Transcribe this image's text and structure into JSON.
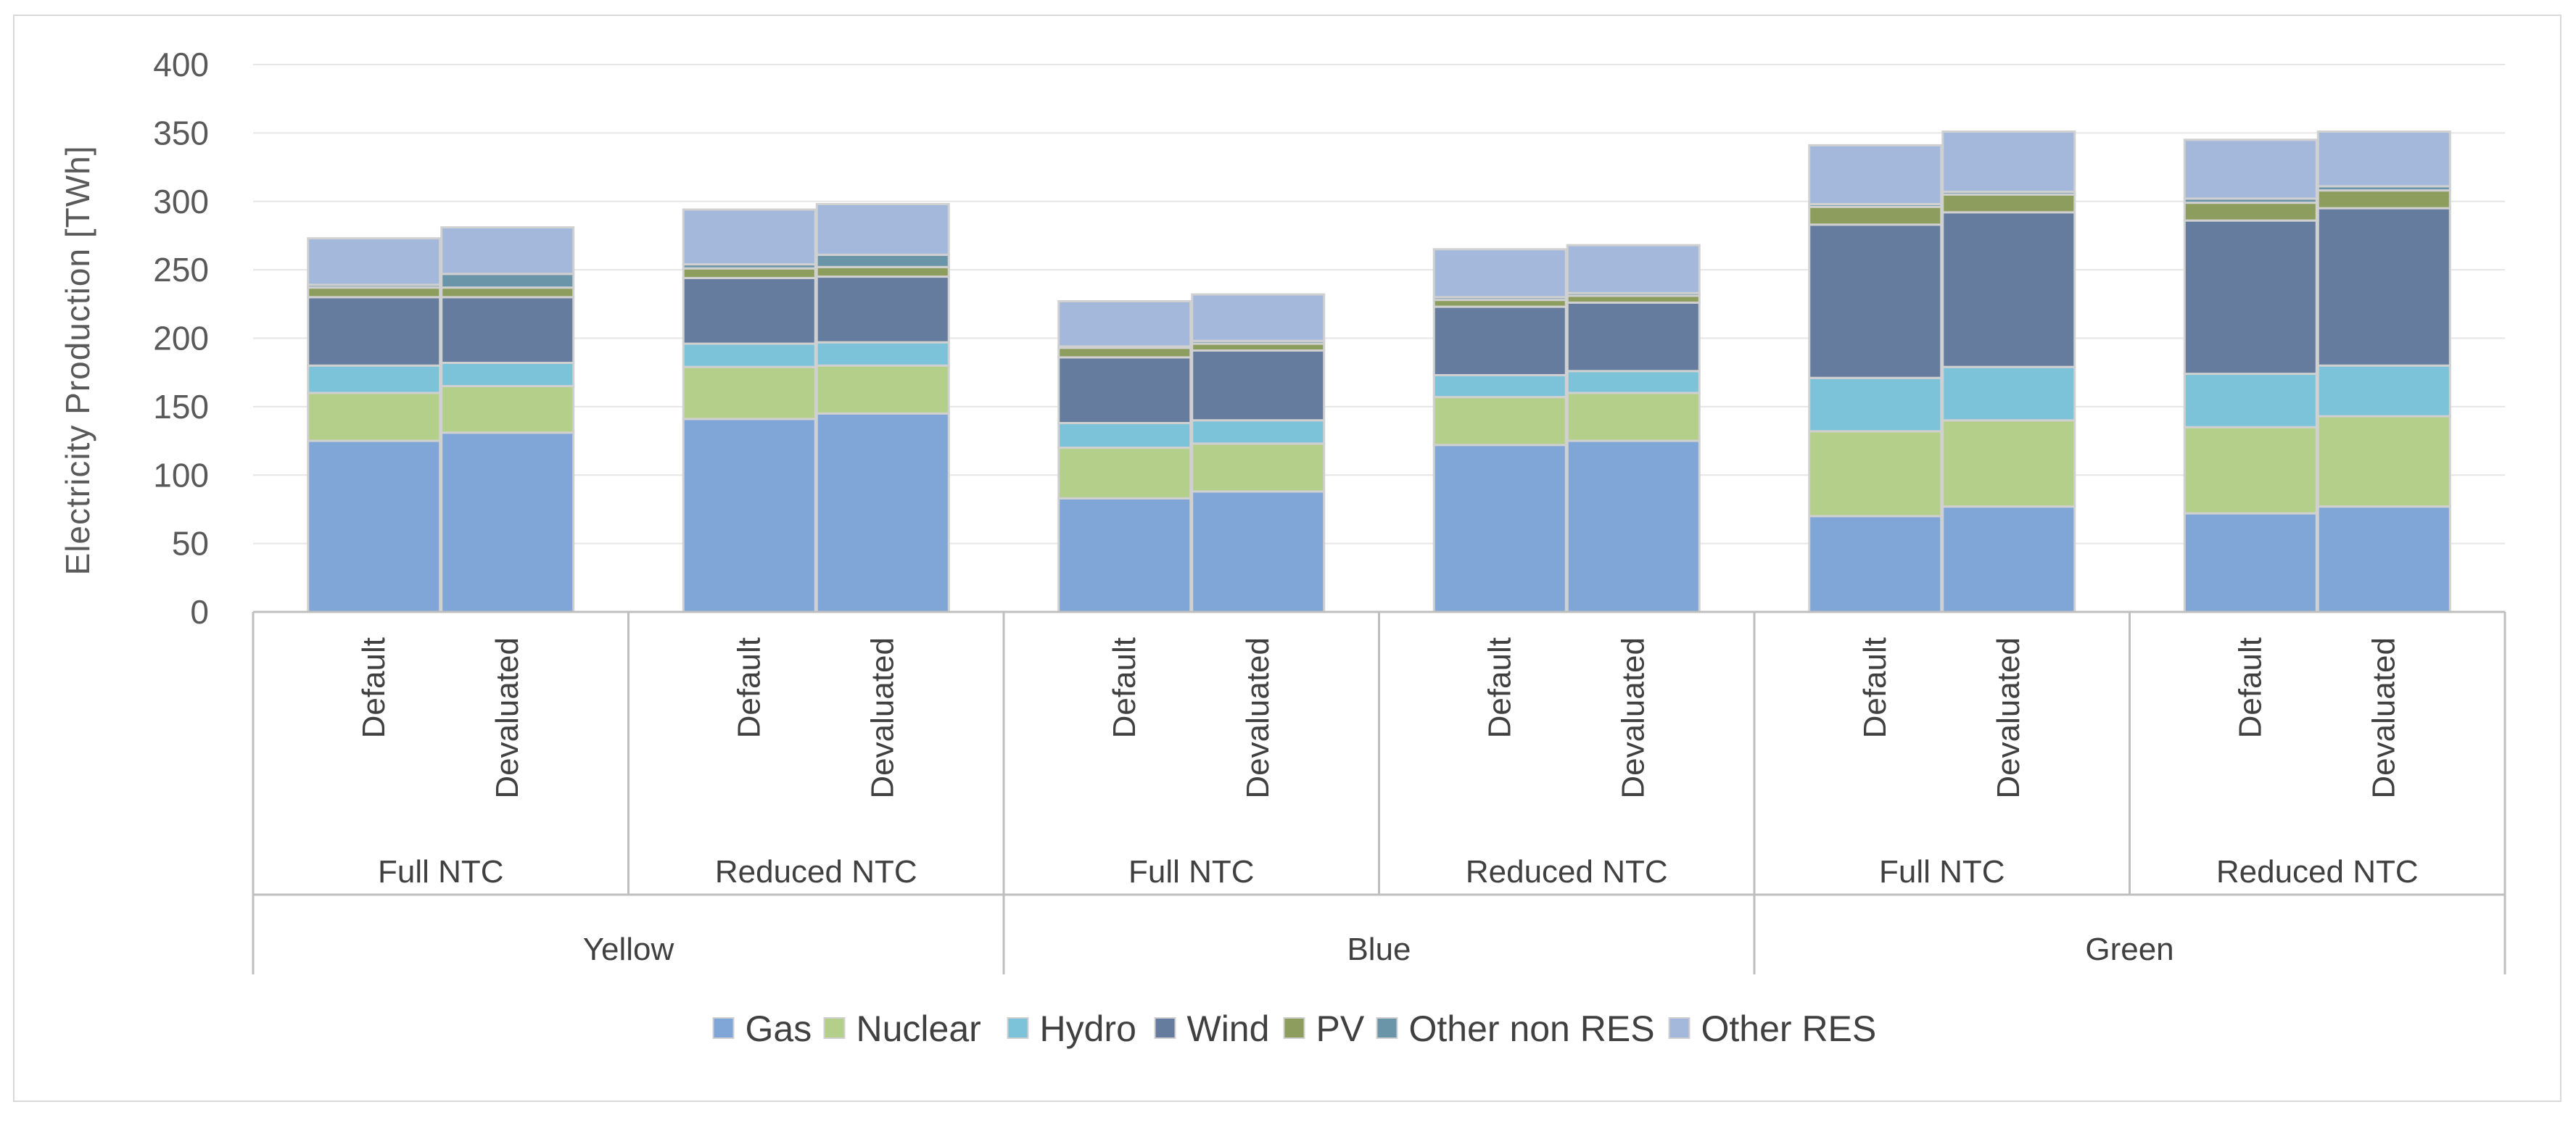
{
  "chart_data": {
    "type": "bar",
    "stacked": true,
    "title": "",
    "xlabel": "",
    "ylabel": "Electricity Production [TWh]",
    "ylim": [
      0,
      400
    ],
    "yticks": [
      0,
      50,
      100,
      150,
      200,
      250,
      300,
      350,
      400
    ],
    "grid": true,
    "legend_position": "bottom",
    "groups": [
      {
        "label": "Yellow",
        "subgroups": [
          {
            "label": "Full NTC",
            "bars": [
              "Default",
              "Devaluated"
            ]
          },
          {
            "label": "Reduced NTC",
            "bars": [
              "Default",
              "Devaluated"
            ]
          }
        ]
      },
      {
        "label": "Blue",
        "subgroups": [
          {
            "label": "Full NTC",
            "bars": [
              "Default",
              "Devaluated"
            ]
          },
          {
            "label": "Reduced NTC",
            "bars": [
              "Default",
              "Devaluated"
            ]
          }
        ]
      },
      {
        "label": "Green",
        "subgroups": [
          {
            "label": "Full NTC",
            "bars": [
              "Default",
              "Devaluated"
            ]
          },
          {
            "label": "Reduced NTC",
            "bars": [
              "Default",
              "Devaluated"
            ]
          }
        ]
      }
    ],
    "series": [
      {
        "name": "Gas",
        "color": "#7fa6d6",
        "values": [
          125,
          131,
          141,
          145,
          83,
          88,
          122,
          125,
          70,
          77,
          72,
          77
        ]
      },
      {
        "name": "Nuclear",
        "color": "#b3cf8a",
        "values": [
          35,
          34,
          38,
          35,
          37,
          35,
          35,
          35,
          62,
          63,
          63,
          66
        ]
      },
      {
        "name": "Hydro",
        "color": "#7cc3d9",
        "values": [
          20,
          17,
          17,
          17,
          18,
          17,
          16,
          16,
          39,
          39,
          39,
          37
        ]
      },
      {
        "name": "Wind",
        "color": "#667c9e",
        "values": [
          50,
          48,
          48,
          48,
          48,
          51,
          50,
          50,
          112,
          113,
          112,
          115
        ]
      },
      {
        "name": "PV",
        "color": "#8c9d5e",
        "values": [
          7,
          7,
          7,
          7,
          7,
          5,
          5,
          5,
          13,
          13,
          13,
          13
        ]
      },
      {
        "name": "Other non RES",
        "color": "#6a95a8",
        "values": [
          2,
          10,
          3,
          9,
          1,
          2,
          2,
          2,
          2,
          2,
          3,
          3
        ]
      },
      {
        "name": "Other RES",
        "color": "#a3b8db",
        "values": [
          34,
          34,
          40,
          37,
          33,
          34,
          35,
          35,
          43,
          44,
          43,
          40
        ]
      }
    ]
  }
}
